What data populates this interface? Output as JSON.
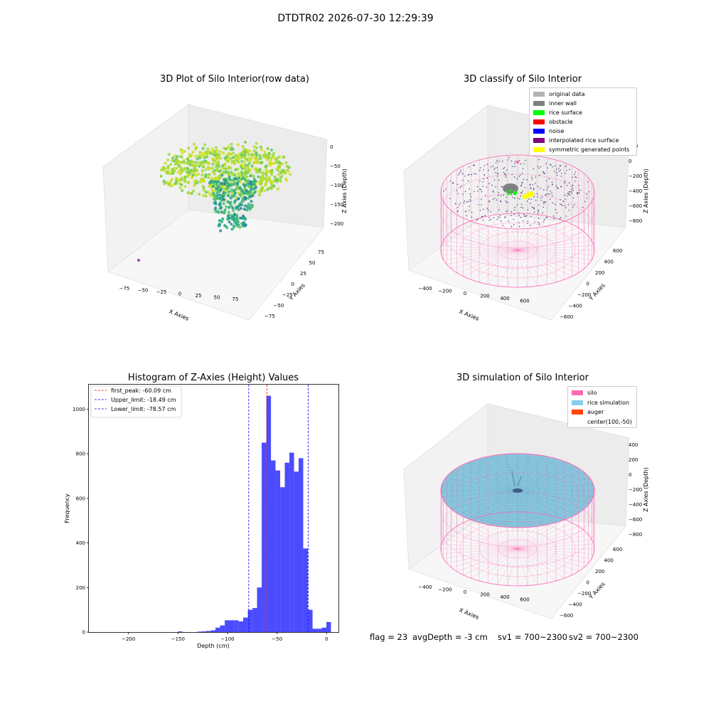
{
  "figure": {
    "suptitle": "DTDTR02 2026-07-30 12:29:39"
  },
  "panel_raw": {
    "title": "3D Plot of Silo Interior(row data)",
    "xlabel": "X Axies",
    "ylabel": "Y Axies",
    "zlabel": "Z Axies (Depth)",
    "xticks": [
      "−75",
      "−50",
      "−25",
      "0",
      "25",
      "50",
      "75"
    ],
    "yticks": [
      "−75",
      "−50",
      "−25",
      "0",
      "25",
      "50",
      "75"
    ],
    "zticks": [
      "0",
      "−50",
      "−100",
      "−150",
      "−200"
    ]
  },
  "panel_classify": {
    "title": "3D classify of Silo Interior",
    "xlabel": "X Axies",
    "ylabel": "Y Axies",
    "zlabel": "Z Axies (Depth)",
    "xticks": [
      "−400",
      "−200",
      "0",
      "200",
      "400",
      "600"
    ],
    "yticks": [
      "−600",
      "−400",
      "−200",
      "0",
      "200",
      "400",
      "600"
    ],
    "zticks": [
      "200",
      "0",
      "−200",
      "−400",
      "−600",
      "−800"
    ],
    "legend": [
      {
        "label": "original data",
        "color": "#b3b3b3"
      },
      {
        "label": "inner wall",
        "color": "#808080"
      },
      {
        "label": "rice surface",
        "color": "#00ff00"
      },
      {
        "label": "obstacle",
        "color": "#ff0000"
      },
      {
        "label": "noise",
        "color": "#0000ff"
      },
      {
        "label": "interpolated rice surface",
        "color": "#800080"
      },
      {
        "label": "symmetric generated points",
        "color": "#ffff00"
      }
    ]
  },
  "panel_sim": {
    "title": "3D simulation of Silo Interior",
    "xlabel": "X Axies",
    "ylabel": "Y Axies",
    "zlabel": "Z Axies (Depth)",
    "xticks": [
      "−400",
      "−200",
      "0",
      "200",
      "400",
      "600"
    ],
    "yticks": [
      "−600",
      "−400",
      "−200",
      "0",
      "200",
      "400",
      "600"
    ],
    "zticks": [
      "400",
      "200",
      "0",
      "−200",
      "−400",
      "−600",
      "−800"
    ],
    "legend": [
      {
        "label": "silo",
        "color": "#ff69b4"
      },
      {
        "label": "rice simulation",
        "color": "#87ceeb"
      },
      {
        "label": "auger",
        "color": "#ff4500"
      },
      {
        "label": "center(100,-50)",
        "color": ""
      }
    ]
  },
  "stats": {
    "flag": "flag = 23",
    "avg_depth": "avgDepth = -3 cm",
    "sv1": "sv1 = 700~2300",
    "sv2": "sv2 = 700~2300"
  },
  "chart_data": [
    {
      "type": "scatter",
      "title": "3D Plot of Silo Interior(row data)",
      "xlabel": "X Axies",
      "ylabel": "Y Axies",
      "zlabel": "Z Axies (Depth)",
      "xlim": [
        -90,
        90
      ],
      "ylim": [
        -90,
        90
      ],
      "zlim": [
        -225,
        5
      ],
      "colormap": "viridis (by depth)",
      "point_groups": [
        {
          "x_range": [
            -50,
            50
          ],
          "y_range": [
            -45,
            45
          ],
          "z_range": [
            -30,
            -75
          ],
          "approx_points": 900
        },
        {
          "x_range": [
            -20,
            20
          ],
          "y_range": [
            -15,
            15
          ],
          "z_range": [
            -80,
            -215
          ],
          "approx_points": 300
        },
        {
          "x": -80,
          "y": -70,
          "z": -210
        }
      ]
    },
    {
      "type": "histogram",
      "title": "Histogram of Z-Axies (Height) Values",
      "xlabel": "Depth (cm)",
      "ylabel": "Frequency",
      "xlim": [
        -240,
        12
      ],
      "ylim": [
        0,
        1110
      ],
      "xticks": [
        -200,
        -150,
        -100,
        -50,
        0
      ],
      "yticks": [
        0,
        200,
        400,
        600,
        800,
        1000
      ],
      "bar_color": "#0000ff",
      "bin_width": 4.67,
      "bins": [
        {
          "x0": -150.0,
          "count": 3
        },
        {
          "x0": -130.5,
          "count": 2
        },
        {
          "x0": -126.0,
          "count": 3
        },
        {
          "x0": -121.5,
          "count": 5
        },
        {
          "x0": -116.8,
          "count": 8
        },
        {
          "x0": -112.2,
          "count": 20
        },
        {
          "x0": -107.5,
          "count": 30
        },
        {
          "x0": -102.8,
          "count": 53
        },
        {
          "x0": -98.2,
          "count": 53
        },
        {
          "x0": -93.5,
          "count": 53
        },
        {
          "x0": -88.8,
          "count": 48
        },
        {
          "x0": -84.2,
          "count": 65
        },
        {
          "x0": -79.5,
          "count": 100
        },
        {
          "x0": -74.8,
          "count": 108
        },
        {
          "x0": -70.2,
          "count": 200
        },
        {
          "x0": -65.5,
          "count": 850
        },
        {
          "x0": -60.8,
          "count": 1060
        },
        {
          "x0": -56.2,
          "count": 770
        },
        {
          "x0": -51.5,
          "count": 725
        },
        {
          "x0": -46.8,
          "count": 650
        },
        {
          "x0": -42.2,
          "count": 760
        },
        {
          "x0": -37.5,
          "count": 805
        },
        {
          "x0": -32.8,
          "count": 720
        },
        {
          "x0": -28.2,
          "count": 780
        },
        {
          "x0": -23.5,
          "count": 375
        },
        {
          "x0": -18.8,
          "count": 100
        },
        {
          "x0": -14.2,
          "count": 15
        },
        {
          "x0": -9.5,
          "count": 15
        },
        {
          "x0": -4.8,
          "count": 20
        },
        {
          "x0": -0.2,
          "count": 45
        }
      ],
      "vlines": [
        {
          "label": "first_peak: -60.09 cm",
          "x": -60.09,
          "color": "#ff0000"
        },
        {
          "label": "Upper_limit: -18.49 cm",
          "x": -18.49,
          "color": "#0000ff"
        },
        {
          "label": "Lower_limit: -78.57 cm",
          "x": -78.57,
          "color": "#0000ff"
        }
      ]
    }
  ]
}
